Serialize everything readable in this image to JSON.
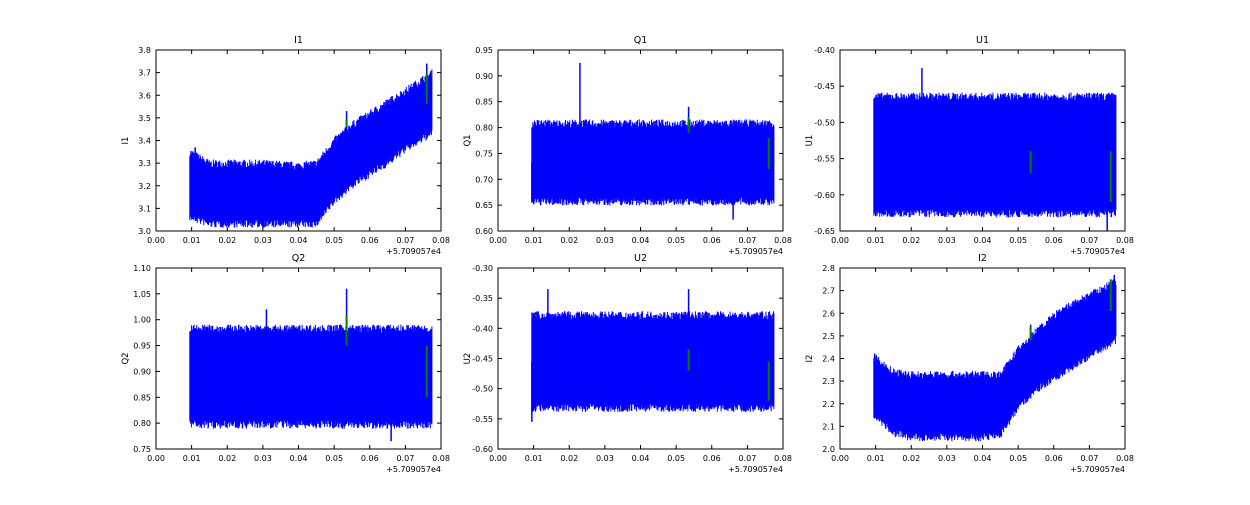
{
  "chart_data": [
    {
      "type": "line",
      "title": "I1",
      "ylabel": "I1",
      "xlim": [
        0.0,
        0.08
      ],
      "ylim": [
        3.0,
        3.8
      ],
      "xticks": [
        "0.00",
        "0.01",
        "0.02",
        "0.03",
        "0.04",
        "0.05",
        "0.06",
        "0.07",
        "0.08"
      ],
      "yticks": [
        "3.0",
        "3.1",
        "3.2",
        "3.3",
        "3.4",
        "3.5",
        "3.6",
        "3.7",
        "3.8"
      ],
      "offset_text": "+5.709057e4",
      "envelope_x": [
        0.0095,
        0.015,
        0.02,
        0.03,
        0.04,
        0.045,
        0.05,
        0.055,
        0.06,
        0.065,
        0.07,
        0.0775
      ],
      "lower": [
        3.08,
        3.05,
        3.05,
        3.05,
        3.05,
        3.05,
        3.15,
        3.22,
        3.27,
        3.32,
        3.38,
        3.45
      ],
      "upper": [
        3.33,
        3.28,
        3.28,
        3.28,
        3.27,
        3.28,
        3.38,
        3.45,
        3.5,
        3.55,
        3.6,
        3.68
      ],
      "spikes": [
        [
          0.0535,
          3.53
        ],
        [
          0.011,
          3.37
        ],
        [
          0.076,
          3.74
        ]
      ],
      "green": [
        [
          0.0535,
          3.46,
          3.49
        ],
        [
          0.076,
          3.56,
          3.7
        ]
      ]
    },
    {
      "type": "line",
      "title": "Q1",
      "ylabel": "Q1",
      "xlim": [
        0.0,
        0.08
      ],
      "ylim": [
        0.6,
        0.95
      ],
      "xticks": [
        "0.00",
        "0.01",
        "0.02",
        "0.03",
        "0.04",
        "0.05",
        "0.06",
        "0.07",
        "0.08"
      ],
      "yticks": [
        "0.60",
        "0.65",
        "0.70",
        "0.75",
        "0.80",
        "0.85",
        "0.90",
        "0.95"
      ],
      "offset_text": "+5.709057e4",
      "envelope_x": [
        0.0095,
        0.0775
      ],
      "lower": [
        0.665,
        0.665
      ],
      "upper": [
        0.8,
        0.8
      ],
      "spikes": [
        [
          0.023,
          0.925
        ],
        [
          0.0535,
          0.84
        ],
        [
          0.0095,
          0.655
        ],
        [
          0.066,
          0.622
        ]
      ],
      "green": [
        [
          0.0535,
          0.79,
          0.82
        ],
        [
          0.076,
          0.72,
          0.78
        ]
      ]
    },
    {
      "type": "line",
      "title": "U1",
      "ylabel": "U1",
      "xlim": [
        0.0,
        0.08
      ],
      "ylim": [
        -0.65,
        -0.4
      ],
      "xticks": [
        "0.00",
        "0.01",
        "0.02",
        "0.03",
        "0.04",
        "0.05",
        "0.06",
        "0.07",
        "0.08"
      ],
      "yticks": [
        "-0.65",
        "-0.60",
        "-0.55",
        "-0.50",
        "-0.45",
        "-0.40"
      ],
      "offset_text": "+5.709057e4",
      "envelope_x": [
        0.0095,
        0.0775
      ],
      "lower": [
        -0.62,
        -0.62
      ],
      "upper": [
        -0.47,
        -0.47
      ],
      "spikes": [
        [
          0.023,
          -0.425
        ],
        [
          0.075,
          -0.65
        ]
      ],
      "green": [
        [
          0.0535,
          -0.57,
          -0.54
        ],
        [
          0.076,
          -0.61,
          -0.54
        ]
      ]
    },
    {
      "type": "line",
      "title": "Q2",
      "ylabel": "Q2",
      "xlim": [
        0.0,
        0.08
      ],
      "ylim": [
        0.75,
        1.1
      ],
      "xticks": [
        "0.00",
        "0.01",
        "0.02",
        "0.03",
        "0.04",
        "0.05",
        "0.06",
        "0.07",
        "0.08"
      ],
      "yticks": [
        "0.75",
        "0.80",
        "0.85",
        "0.90",
        "0.95",
        "1.00",
        "1.05",
        "1.10"
      ],
      "offset_text": "+5.709057e4",
      "envelope_x": [
        0.0095,
        0.0775
      ],
      "lower": [
        0.805,
        0.805
      ],
      "upper": [
        0.975,
        0.975
      ],
      "spikes": [
        [
          0.031,
          1.02
        ],
        [
          0.0535,
          1.06
        ],
        [
          0.066,
          0.765
        ]
      ],
      "green": [
        [
          0.0535,
          0.95,
          1.01
        ],
        [
          0.076,
          0.85,
          0.95
        ]
      ]
    },
    {
      "type": "line",
      "title": "U2",
      "ylabel": "U2",
      "xlim": [
        0.0,
        0.08
      ],
      "ylim": [
        -0.6,
        -0.3
      ],
      "xticks": [
        "0.00",
        "0.01",
        "0.02",
        "0.03",
        "0.04",
        "0.05",
        "0.06",
        "0.07",
        "0.08"
      ],
      "yticks": [
        "-0.60",
        "-0.55",
        "-0.50",
        "-0.45",
        "-0.40",
        "-0.35",
        "-0.30"
      ],
      "offset_text": "+5.709057e4",
      "envelope_x": [
        0.0095,
        0.0775
      ],
      "lower": [
        -0.525,
        -0.525
      ],
      "upper": [
        -0.385,
        -0.385
      ],
      "spikes": [
        [
          0.014,
          -0.335
        ],
        [
          0.0535,
          -0.335
        ],
        [
          0.0095,
          -0.555
        ]
      ],
      "green": [
        [
          0.0535,
          -0.47,
          -0.435
        ],
        [
          0.076,
          -0.52,
          -0.455
        ]
      ]
    },
    {
      "type": "line",
      "title": "I2",
      "ylabel": "I2",
      "xlim": [
        0.0,
        0.08
      ],
      "ylim": [
        2.0,
        2.8
      ],
      "xticks": [
        "0.00",
        "0.01",
        "0.02",
        "0.03",
        "0.04",
        "0.05",
        "0.06",
        "0.07",
        "0.08"
      ],
      "yticks": [
        "2.0",
        "2.1",
        "2.2",
        "2.3",
        "2.4",
        "2.5",
        "2.6",
        "2.7",
        "2.8"
      ],
      "offset_text": "+5.709057e4",
      "envelope_x": [
        0.0095,
        0.015,
        0.02,
        0.03,
        0.04,
        0.045,
        0.05,
        0.055,
        0.06,
        0.065,
        0.07,
        0.0775
      ],
      "lower": [
        2.17,
        2.09,
        2.07,
        2.07,
        2.07,
        2.08,
        2.2,
        2.28,
        2.33,
        2.38,
        2.43,
        2.5
      ],
      "upper": [
        2.39,
        2.32,
        2.31,
        2.31,
        2.31,
        2.31,
        2.42,
        2.5,
        2.57,
        2.62,
        2.66,
        2.72
      ],
      "spikes": [
        [
          0.0535,
          2.55
        ],
        [
          0.077,
          2.77
        ]
      ],
      "green": [
        [
          0.0535,
          2.48,
          2.54
        ],
        [
          0.076,
          2.61,
          2.75
        ]
      ]
    }
  ],
  "colors": {
    "line": "#0000ff",
    "marker": "#008000"
  }
}
